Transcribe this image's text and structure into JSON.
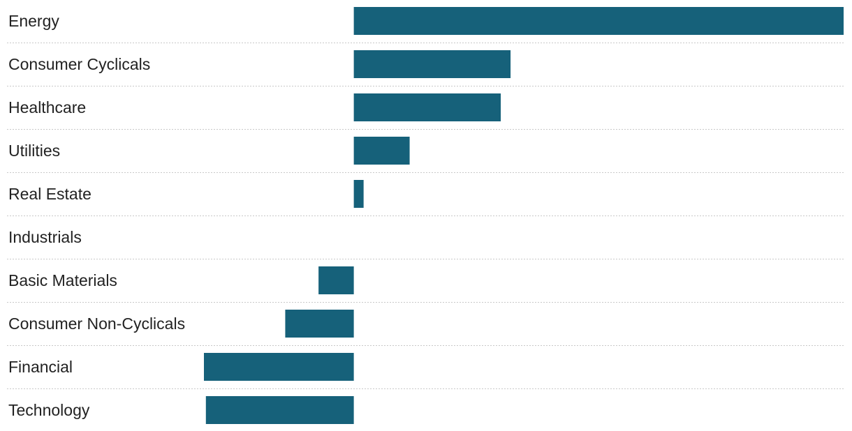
{
  "chart_data": {
    "type": "bar",
    "orientation": "horizontal",
    "title": "",
    "xlabel": "",
    "ylabel": "",
    "categories": [
      "Energy",
      "Consumer Cyclicals",
      "Healthcare",
      "Utilities",
      "Real Estate",
      "Industrials",
      "Basic Materials",
      "Consumer Non-Cyclicals",
      "Financial",
      "Technology"
    ],
    "values": [
      50.0,
      16.0,
      15.0,
      5.7,
      1.0,
      0.0,
      -3.6,
      -7.0,
      -15.3,
      -15.1
    ],
    "xlim": [
      -15.3,
      50.0
    ],
    "grid": false,
    "legend": "none",
    "bar_color": "#16617a",
    "separator_color": "#c8c8c8"
  }
}
